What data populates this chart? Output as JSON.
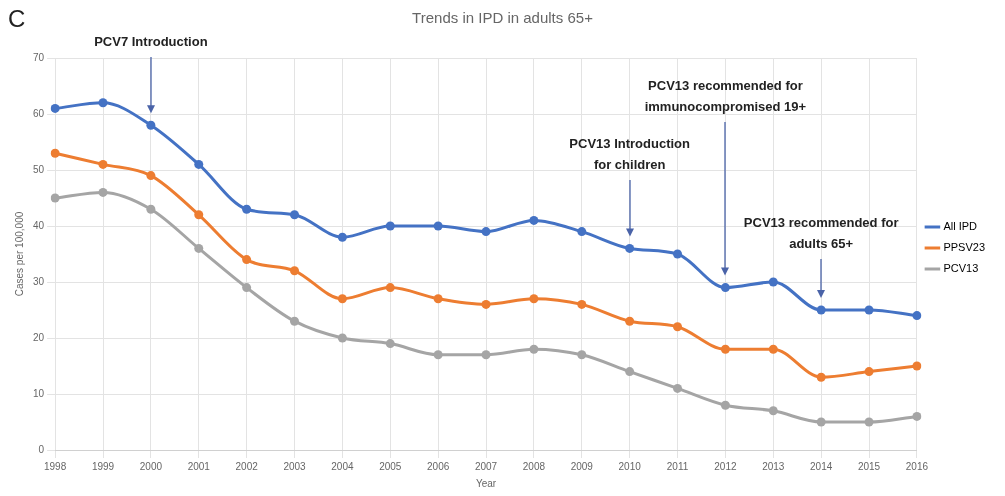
{
  "chart_data": {
    "type": "line",
    "title": "Trends in IPD in adults 65+",
    "xlabel": "Year",
    "ylabel": "Cases per 100,000",
    "categories": [
      "1998",
      "1999",
      "2000",
      "2001",
      "2002",
      "2003",
      "2004",
      "2005",
      "2006",
      "2007",
      "2008",
      "2009",
      "2010",
      "2011",
      "2012",
      "2013",
      "2014",
      "2015",
      "2016"
    ],
    "series": [
      {
        "name": "All IPD",
        "color": "#4472c4",
        "values": [
          61,
          62,
          58,
          51,
          43,
          42,
          38,
          40,
          40,
          39,
          41,
          39,
          36,
          35,
          29,
          30,
          25,
          25,
          24
        ]
      },
      {
        "name": "PPSV23",
        "color": "#ed7d31",
        "values": [
          53,
          51,
          49,
          42,
          34,
          32,
          27,
          29,
          27,
          26,
          27,
          26,
          23,
          22,
          18,
          18,
          13,
          14,
          15
        ]
      },
      {
        "name": "PCV13",
        "color": "#a5a5a5",
        "values": [
          45,
          46,
          43,
          36,
          29,
          23,
          20,
          19,
          17,
          17,
          18,
          17,
          14,
          11,
          8,
          7,
          5,
          5,
          6
        ]
      }
    ],
    "ylim": [
      0,
      70
    ],
    "yticks": [
      0,
      10,
      20,
      30,
      40,
      50,
      60,
      70
    ],
    "grid": true,
    "legend": "right",
    "marker": "circle",
    "line_style": "solid",
    "annotations": [
      "C",
      "PCV7 Introduction",
      "PCV13 Introduction\nfor children",
      "PCV13 recommended for\nimmunocompromised 19+",
      "PCV13 recommended for\nadults 65+"
    ]
  }
}
